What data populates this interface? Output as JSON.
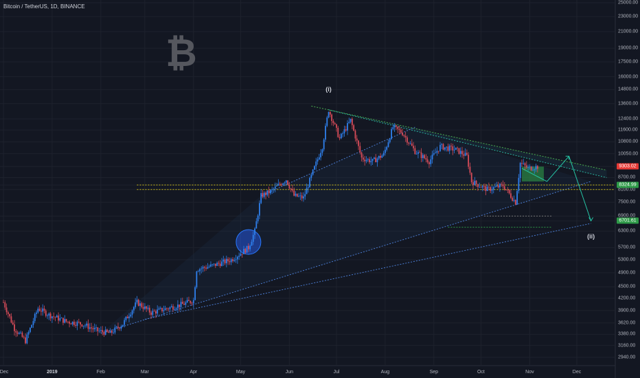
{
  "title": "Bitcoin / TetherUS, 1D, BINANCE",
  "logo_symbol": "₿",
  "chart_data": {
    "type": "candlestick",
    "symbol": "Bitcoin / TetherUS",
    "interval": "1D",
    "exchange": "BINANCE",
    "y_scale": "log",
    "ylim": [
      2900,
      25000
    ],
    "y_ticks": [
      "25000.00",
      "23000.00",
      "21000.00",
      "19000.00",
      "17500.00",
      "16000.00",
      "14800.00",
      "13600.00",
      "12400.00",
      "11600.00",
      "10800.00",
      "10050.00",
      "9303.02",
      "8700.00",
      "8324.99",
      "8100.00",
      "7500.00",
      "6900.00",
      "6701.61",
      "6300.00",
      "5700.00",
      "5300.00",
      "4900.00",
      "4500.00",
      "4200.00",
      "3900.00",
      "3620.00",
      "3380.00",
      "3160.00",
      "2940.00"
    ],
    "x_ticks": [
      {
        "label": "Dec",
        "date": "2018-12-01"
      },
      {
        "label": "2019",
        "date": "2019-01-01",
        "bold": true
      },
      {
        "label": "Feb",
        "date": "2019-02-01"
      },
      {
        "label": "Mar",
        "date": "2019-03-01"
      },
      {
        "label": "Apr",
        "date": "2019-04-01"
      },
      {
        "label": "May",
        "date": "2019-05-01"
      },
      {
        "label": "Jun",
        "date": "2019-06-01"
      },
      {
        "label": "Jul",
        "date": "2019-07-01"
      },
      {
        "label": "Aug",
        "date": "2019-08-01"
      },
      {
        "label": "Sep",
        "date": "2019-09-01"
      },
      {
        "label": "Oct",
        "date": "2019-10-01"
      },
      {
        "label": "Nov",
        "date": "2019-11-01"
      },
      {
        "label": "Dec",
        "date": "2019-12-01"
      }
    ],
    "price_tags": [
      {
        "value": "9303.02",
        "price": 9303.02,
        "color": "#e53935"
      },
      {
        "value": "8324.99",
        "price": 8324.99,
        "color": "#2e9a48"
      },
      {
        "value": "6701.61",
        "price": 6701.61,
        "color": "#2e9a48"
      }
    ],
    "wave_labels": [
      {
        "text": "(i)",
        "date": "2019-06-26",
        "price": 14800
      },
      {
        "text": "(ii)",
        "date": "2019-12-10",
        "price": 6100
      }
    ],
    "path_points": [
      [
        "2018-12-01",
        4100
      ],
      [
        "2018-12-08",
        3500
      ],
      [
        "2018-12-15",
        3250
      ],
      [
        "2018-12-23",
        3950
      ],
      [
        "2018-12-30",
        3800
      ],
      [
        "2019-01-10",
        3650
      ],
      [
        "2019-01-20",
        3600
      ],
      [
        "2019-01-30",
        3450
      ],
      [
        "2019-02-07",
        3400
      ],
      [
        "2019-02-15",
        3600
      ],
      [
        "2019-02-24",
        4100
      ],
      [
        "2019-03-05",
        3850
      ],
      [
        "2019-03-15",
        3950
      ],
      [
        "2019-03-25",
        4050
      ],
      [
        "2019-04-01",
        4150
      ],
      [
        "2019-04-03",
        5000
      ],
      [
        "2019-04-12",
        5100
      ],
      [
        "2019-04-25",
        5300
      ],
      [
        "2019-05-06",
        5700
      ],
      [
        "2019-05-10",
        6300
      ],
      [
        "2019-05-14",
        7800
      ],
      [
        "2019-05-20",
        8000
      ],
      [
        "2019-05-25",
        8300
      ],
      [
        "2019-05-30",
        8600
      ],
      [
        "2019-06-04",
        7800
      ],
      [
        "2019-06-10",
        7700
      ],
      [
        "2019-06-16",
        9000
      ],
      [
        "2019-06-22",
        10500
      ],
      [
        "2019-06-26",
        13100
      ],
      [
        "2019-07-03",
        11000
      ],
      [
        "2019-07-10",
        12300
      ],
      [
        "2019-07-17",
        9800
      ],
      [
        "2019-07-24",
        9600
      ],
      [
        "2019-07-31",
        10000
      ],
      [
        "2019-08-06",
        11800
      ],
      [
        "2019-08-12",
        11400
      ],
      [
        "2019-08-20",
        10200
      ],
      [
        "2019-08-29",
        9600
      ],
      [
        "2019-09-05",
        10500
      ],
      [
        "2019-09-15",
        10300
      ],
      [
        "2019-09-22",
        9900
      ],
      [
        "2019-09-25",
        8500
      ],
      [
        "2019-10-05",
        8100
      ],
      [
        "2019-10-15",
        8300
      ],
      [
        "2019-10-23",
        7500
      ],
      [
        "2019-10-26",
        9500
      ],
      [
        "2019-10-31",
        9200
      ],
      [
        "2019-11-06",
        9300
      ]
    ],
    "trendlines": [
      {
        "from": [
          "2019-06-15",
          13400
        ],
        "to": [
          "2019-12-20",
          9100
        ],
        "style": "dotted",
        "color": "#4caf50"
      },
      {
        "from": [
          "2019-06-26",
          13100
        ],
        "to": [
          "2019-12-20",
          8700
        ],
        "style": "dotted",
        "color": "#2bb5a0"
      },
      {
        "from": [
          "2019-05-14",
          7800
        ],
        "to": [
          "2019-08-20",
          11800
        ],
        "style": "dotted",
        "color": "#4a7bd0"
      },
      {
        "from": [
          "2019-02-01",
          3400
        ],
        "to": [
          "2019-12-10",
          8500
        ],
        "style": "dotted",
        "color": "#4a7bd0"
      },
      {
        "from": [
          "2019-03-01",
          3700
        ],
        "to": [
          "2019-12-10",
          6600
        ],
        "style": "dotted",
        "color": "#4a7bd0"
      }
    ],
    "horizontal_levels": [
      {
        "price": 8324.99,
        "from": "2019-02-24",
        "to": "2019-12-25",
        "color": "#d4c21a"
      },
      {
        "price": 8100,
        "from": "2019-02-24",
        "to": "2019-12-25",
        "color": "#d4c21a"
      },
      {
        "price": 6900,
        "from": "2019-10-03",
        "to": "2019-11-15",
        "color": "#777777"
      },
      {
        "price": 6450,
        "from": "2019-09-10",
        "to": "2019-11-15",
        "color": "#2e9a48"
      }
    ],
    "projection": [
      [
        "2019-10-27",
        9200
      ],
      [
        "2019-11-12",
        8500
      ],
      [
        "2019-11-26",
        9900
      ],
      [
        "2019-12-10",
        6701.61
      ]
    ],
    "circle": {
      "date": "2019-05-06",
      "price": 5900
    }
  }
}
